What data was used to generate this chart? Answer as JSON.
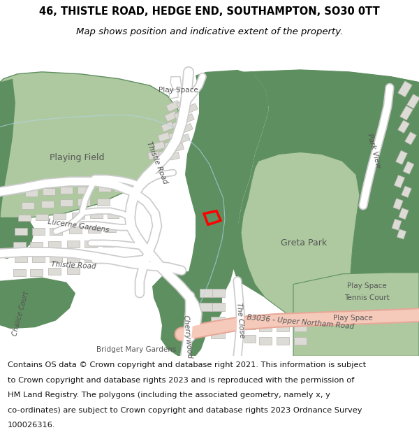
{
  "title": "46, THISTLE ROAD, HEDGE END, SOUTHAMPTON, SO30 0TT",
  "subtitle": "Map shows position and indicative extent of the property.",
  "footer_lines": [
    "Contains OS data © Crown copyright and database right 2021. This information is subject",
    "to Crown copyright and database rights 2023 and is reproduced with the permission of",
    "HM Land Registry. The polygons (including the associated geometry, namely x, y",
    "co-ordinates) are subject to Crown copyright and database rights 2023 Ordnance Survey",
    "100026316."
  ],
  "map_bg": "#f0eeea",
  "road_color": "#ffffff",
  "road_outline": "#cccccc",
  "green_light": "#aec9a0",
  "green_dark": "#5e8f60",
  "building_color": "#dddbd6",
  "building_outline": "#b8b4ae",
  "property_color": "#ff0000",
  "road_salmon_fill": "#f5cabb",
  "road_salmon_outline": "#e8a898",
  "title_fontsize": 10.5,
  "subtitle_fontsize": 9.5,
  "footer_fontsize": 8.2,
  "label_color": "#555555",
  "water_color": "#c8e0f0"
}
